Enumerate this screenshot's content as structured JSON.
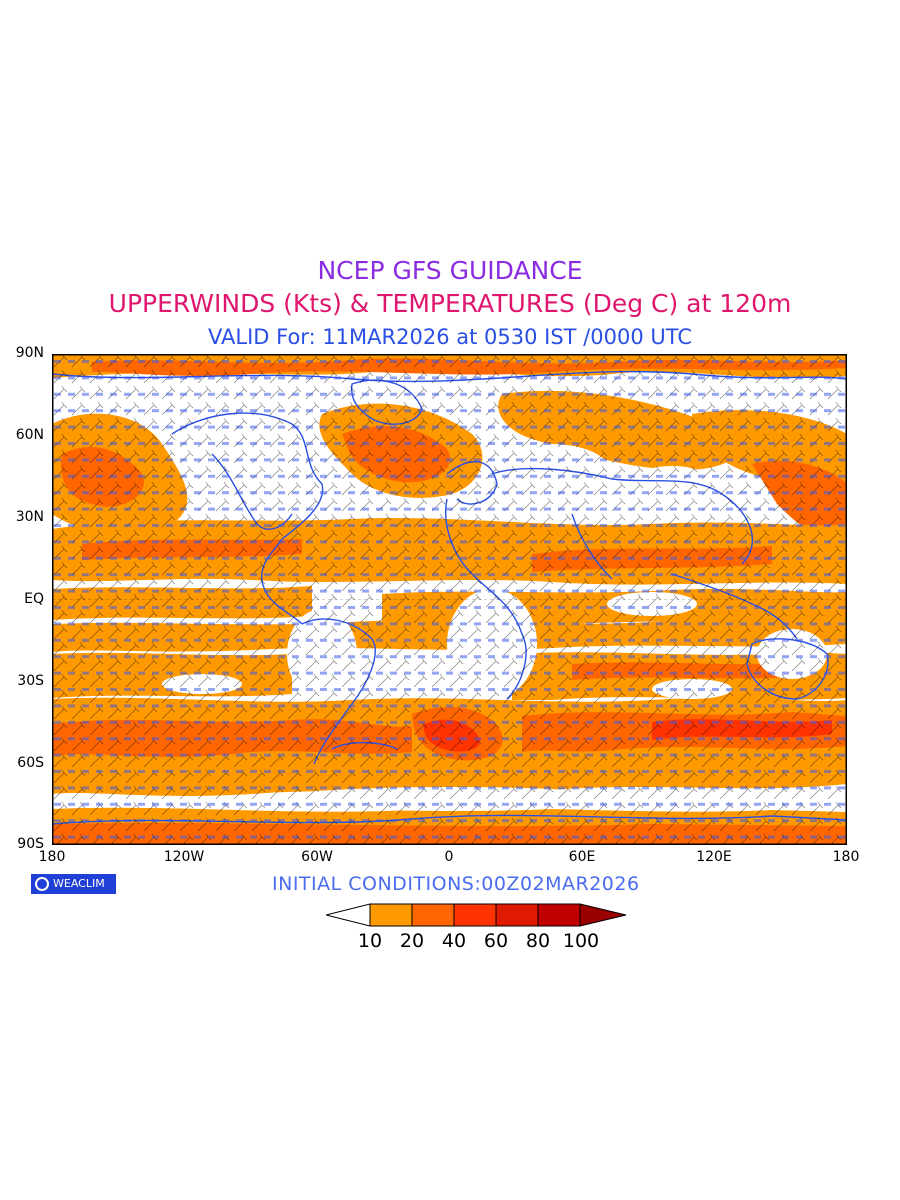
{
  "titles": {
    "line1": "NCEP GFS GUIDANCE",
    "line2": "UPPERWINDS (Kts) & TEMPERATURES (Deg C) at 120m",
    "line3": "VALID For: 11MAR2026 at 0530 IST /0000 UTC"
  },
  "axes": {
    "lat_labels": [
      "90N",
      "60N",
      "30N",
      "EQ",
      "30S",
      "60S",
      "90S"
    ],
    "lon_labels": [
      "180",
      "120W",
      "60W",
      "0",
      "60E",
      "120E",
      "180"
    ]
  },
  "footer": {
    "logo_text": "WEACLIM",
    "initial_conditions": "INITIAL CONDITIONS:00Z02MAR2026"
  },
  "colorbar": {
    "labels": [
      "10",
      "20",
      "40",
      "60",
      "80",
      "100"
    ],
    "colors": [
      "#ffffff",
      "#ff9900",
      "#ff6600",
      "#ff3300",
      "#e01a00",
      "#c00000",
      "#9a0000"
    ]
  },
  "map_colors": {
    "ocean_land": "#ffffff",
    "speed_10_20": "#ff9900",
    "speed_20_40": "#ff6600",
    "coastline": "#2a4fe6",
    "barbs": "#000000"
  }
}
